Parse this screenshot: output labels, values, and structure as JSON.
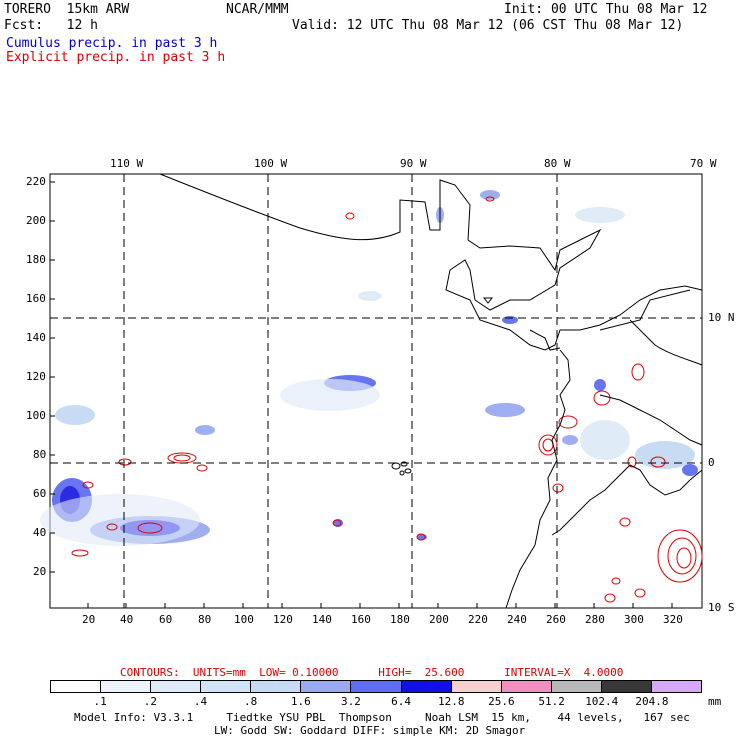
{
  "header": {
    "model": "TORERO  15km ARW",
    "org": "NCAR/MMM",
    "init": "Init: 00 UTC Thu 08 Mar 12",
    "fcst": "Fcst:   12 h",
    "valid": "Valid: 12 UTC Thu 08 Mar 12 (06 CST Thu 08 Mar 12)",
    "cumulus_label": "Cumulus precip. in past 3 h",
    "explicit_label": "Explicit precip. in past 3 h"
  },
  "colors": {
    "cumulus": "#0000cc",
    "explicit": "#dd0000"
  },
  "map": {
    "lon_labels": [
      "110 W",
      "100 W",
      "90 W",
      "80 W",
      "70 W"
    ],
    "lat_labels": [
      "10 N",
      "0",
      "10 S"
    ],
    "y_ticks": [
      "220",
      "200",
      "180",
      "160",
      "140",
      "120",
      "100",
      "80",
      "60",
      "40",
      "20"
    ],
    "x_ticks": [
      "20",
      "40",
      "60",
      "80",
      "100",
      "120",
      "140",
      "160",
      "180",
      "200",
      "220",
      "240",
      "260",
      "280",
      "300",
      "320"
    ]
  },
  "contours_line": {
    "label": "CONTOURS:  UNITS=mm  LOW= 0.10000      HIGH=  25.600      INTERVAL=X  4.0000"
  },
  "legend": {
    "values": [
      ".1",
      ".2",
      ".4",
      ".8",
      "1.6",
      "3.2",
      "6.4",
      "12.8",
      "25.6",
      "51.2",
      "102.4",
      "204.8"
    ],
    "unit": "mm",
    "colors": [
      "#ffffff",
      "#eef2fb",
      "#dfeaf8",
      "#cfe4f6",
      "#c5daf5",
      "#9aaaf0",
      "#5f6ef0",
      "#1010e8",
      "#f8d0d0",
      "#f090c0",
      "#b8b8b8",
      "#383838",
      "#d8a8f8"
    ]
  },
  "footer": {
    "line1": "Model Info: V3.3.1     Tiedtke YSU PBL  Thompson     Noah LSM  15 km,    44 levels,   167 sec",
    "line2": "LW: Godd SW: Goddard DIFF: simple KM: 2D Smagor"
  }
}
